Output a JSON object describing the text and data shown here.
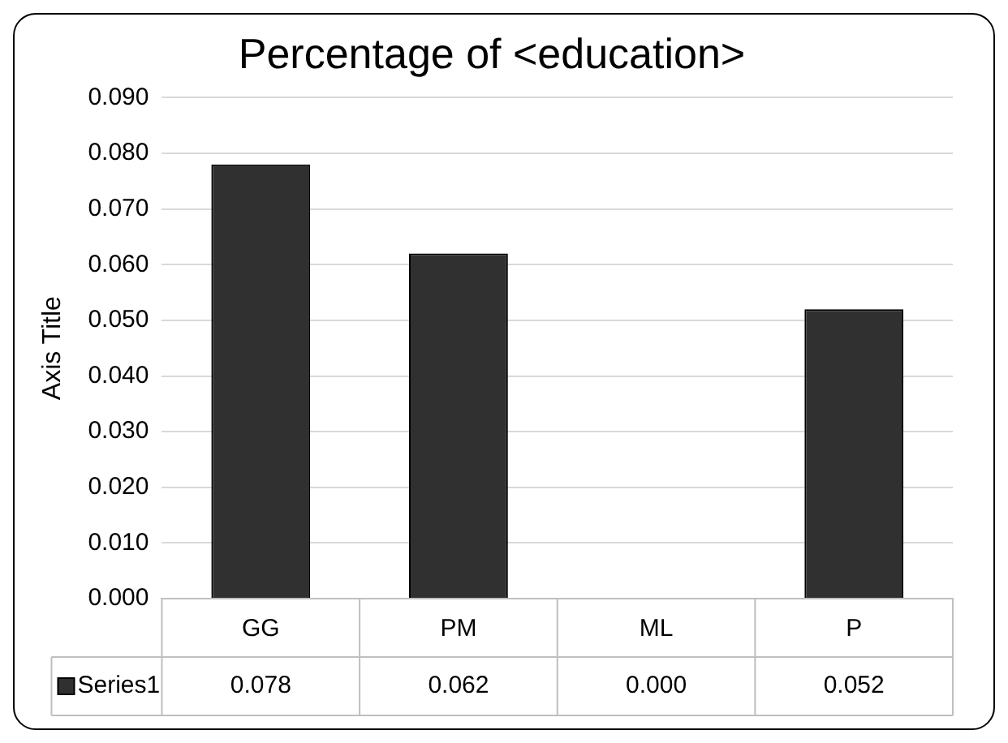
{
  "chart_data": {
    "type": "bar",
    "title": "Percentage of <education>",
    "ylabel": "Axis Title",
    "categories": [
      "GG",
      "PM",
      "ML",
      "P"
    ],
    "series": [
      {
        "name": "Series1",
        "color": "#303030",
        "values": [
          0.078,
          0.062,
          0.0,
          0.052
        ],
        "value_labels": [
          "0.078",
          "0.062",
          "0.000",
          "0.052"
        ]
      }
    ],
    "ylim": [
      0,
      0.09
    ],
    "yticks": [
      {
        "value": 0,
        "label": "0.000"
      },
      {
        "value": 0.01,
        "label": "0.010"
      },
      {
        "value": 0.02,
        "label": "0.020"
      },
      {
        "value": 0.03,
        "label": "0.030"
      },
      {
        "value": 0.04,
        "label": "0.040"
      },
      {
        "value": 0.05,
        "label": "0.050"
      },
      {
        "value": 0.06,
        "label": "0.060"
      },
      {
        "value": 0.07,
        "label": "0.070"
      },
      {
        "value": 0.08,
        "label": "0.080"
      },
      {
        "value": 0.09,
        "label": "0.090"
      }
    ],
    "grid": "y"
  }
}
